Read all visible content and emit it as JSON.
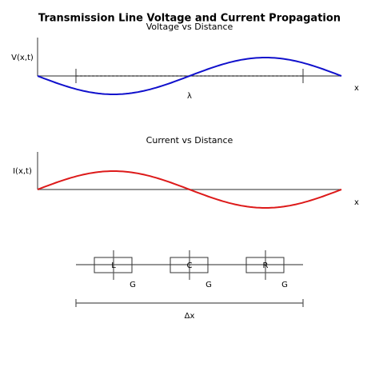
{
  "title": "Transmission Line Voltage and Current Propagation",
  "voltage_plot": {
    "title": "Voltage vs Distance",
    "y_label": "V(x,t)",
    "x_label": "x",
    "wavelength_label": "λ"
  },
  "current_plot": {
    "title": "Current vs Distance",
    "y_label": "I(x,t)",
    "x_label": "x"
  },
  "circuit": {
    "elements": [
      "L",
      "C",
      "R"
    ],
    "shunt_labels": [
      "G",
      "G",
      "G"
    ],
    "length_label": "Δx"
  }
}
